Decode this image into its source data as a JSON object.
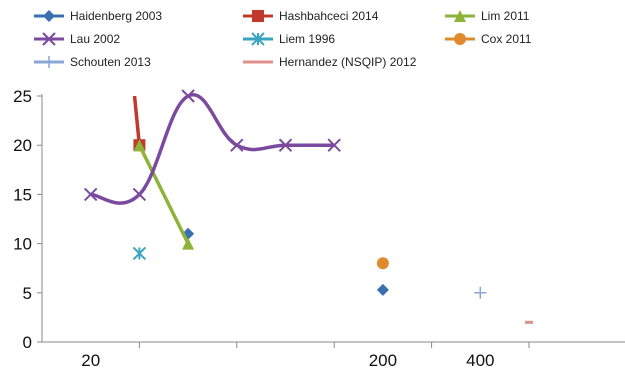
{
  "chart_data": {
    "type": "line",
    "title": "",
    "xlabel": "",
    "ylabel": "",
    "ylim": [
      0,
      25
    ],
    "y_ticks": [
      "0",
      "5",
      "10",
      "15",
      "20",
      "25"
    ],
    "x_positions": [
      1,
      2,
      3,
      4,
      5,
      6,
      7,
      8,
      9,
      10,
      11
    ],
    "x_tick_labels": [
      {
        "x": 1,
        "label": "20"
      },
      {
        "x": 7,
        "label": "200"
      },
      {
        "x": 9,
        "label": "400"
      }
    ],
    "grid": false,
    "legend_position": "top",
    "series": [
      {
        "name": "Haidenberg 2003",
        "color": "#3a6fb0",
        "marker": "diamond",
        "smooth": false,
        "points": [
          [
            3,
            11
          ],
          [
            7,
            5.3
          ]
        ],
        "connect": false
      },
      {
        "name": "Hashbahceci 2014",
        "color": "#c0392b",
        "marker": "square",
        "smooth": false,
        "points": [
          [
            1.9,
            25
          ],
          [
            2,
            20
          ]
        ],
        "marker_points": [
          [
            2,
            20
          ]
        ],
        "connect": true
      },
      {
        "name": "Lim 2011",
        "color": "#8db33a",
        "marker": "triangle",
        "smooth": false,
        "points": [
          [
            2,
            20
          ],
          [
            3,
            10
          ]
        ],
        "connect": true
      },
      {
        "name": "Lau 2002",
        "color": "#7b4a9e",
        "marker": "x",
        "smooth": true,
        "points": [
          [
            1,
            15
          ],
          [
            2,
            15
          ],
          [
            3,
            25
          ],
          [
            4,
            20
          ],
          [
            5,
            20
          ],
          [
            6,
            20
          ]
        ],
        "connect": true
      },
      {
        "name": "Liem 1996",
        "color": "#3aa5c0",
        "marker": "asterisk",
        "smooth": false,
        "points": [
          [
            2,
            9
          ]
        ],
        "connect": false
      },
      {
        "name": "Cox 2011",
        "color": "#e08a2e",
        "marker": "circle",
        "smooth": false,
        "points": [
          [
            7,
            8
          ]
        ],
        "connect": false
      },
      {
        "name": "Schouten 2013",
        "color": "#8aa6d6",
        "marker": "plus",
        "smooth": false,
        "points": [
          [
            9,
            5
          ]
        ],
        "connect": false
      },
      {
        "name": "Hernandez (NSQIP) 2012",
        "color": "#e0908a",
        "marker": "dash",
        "smooth": false,
        "points": [
          [
            10,
            2
          ]
        ],
        "connect": false
      }
    ]
  }
}
